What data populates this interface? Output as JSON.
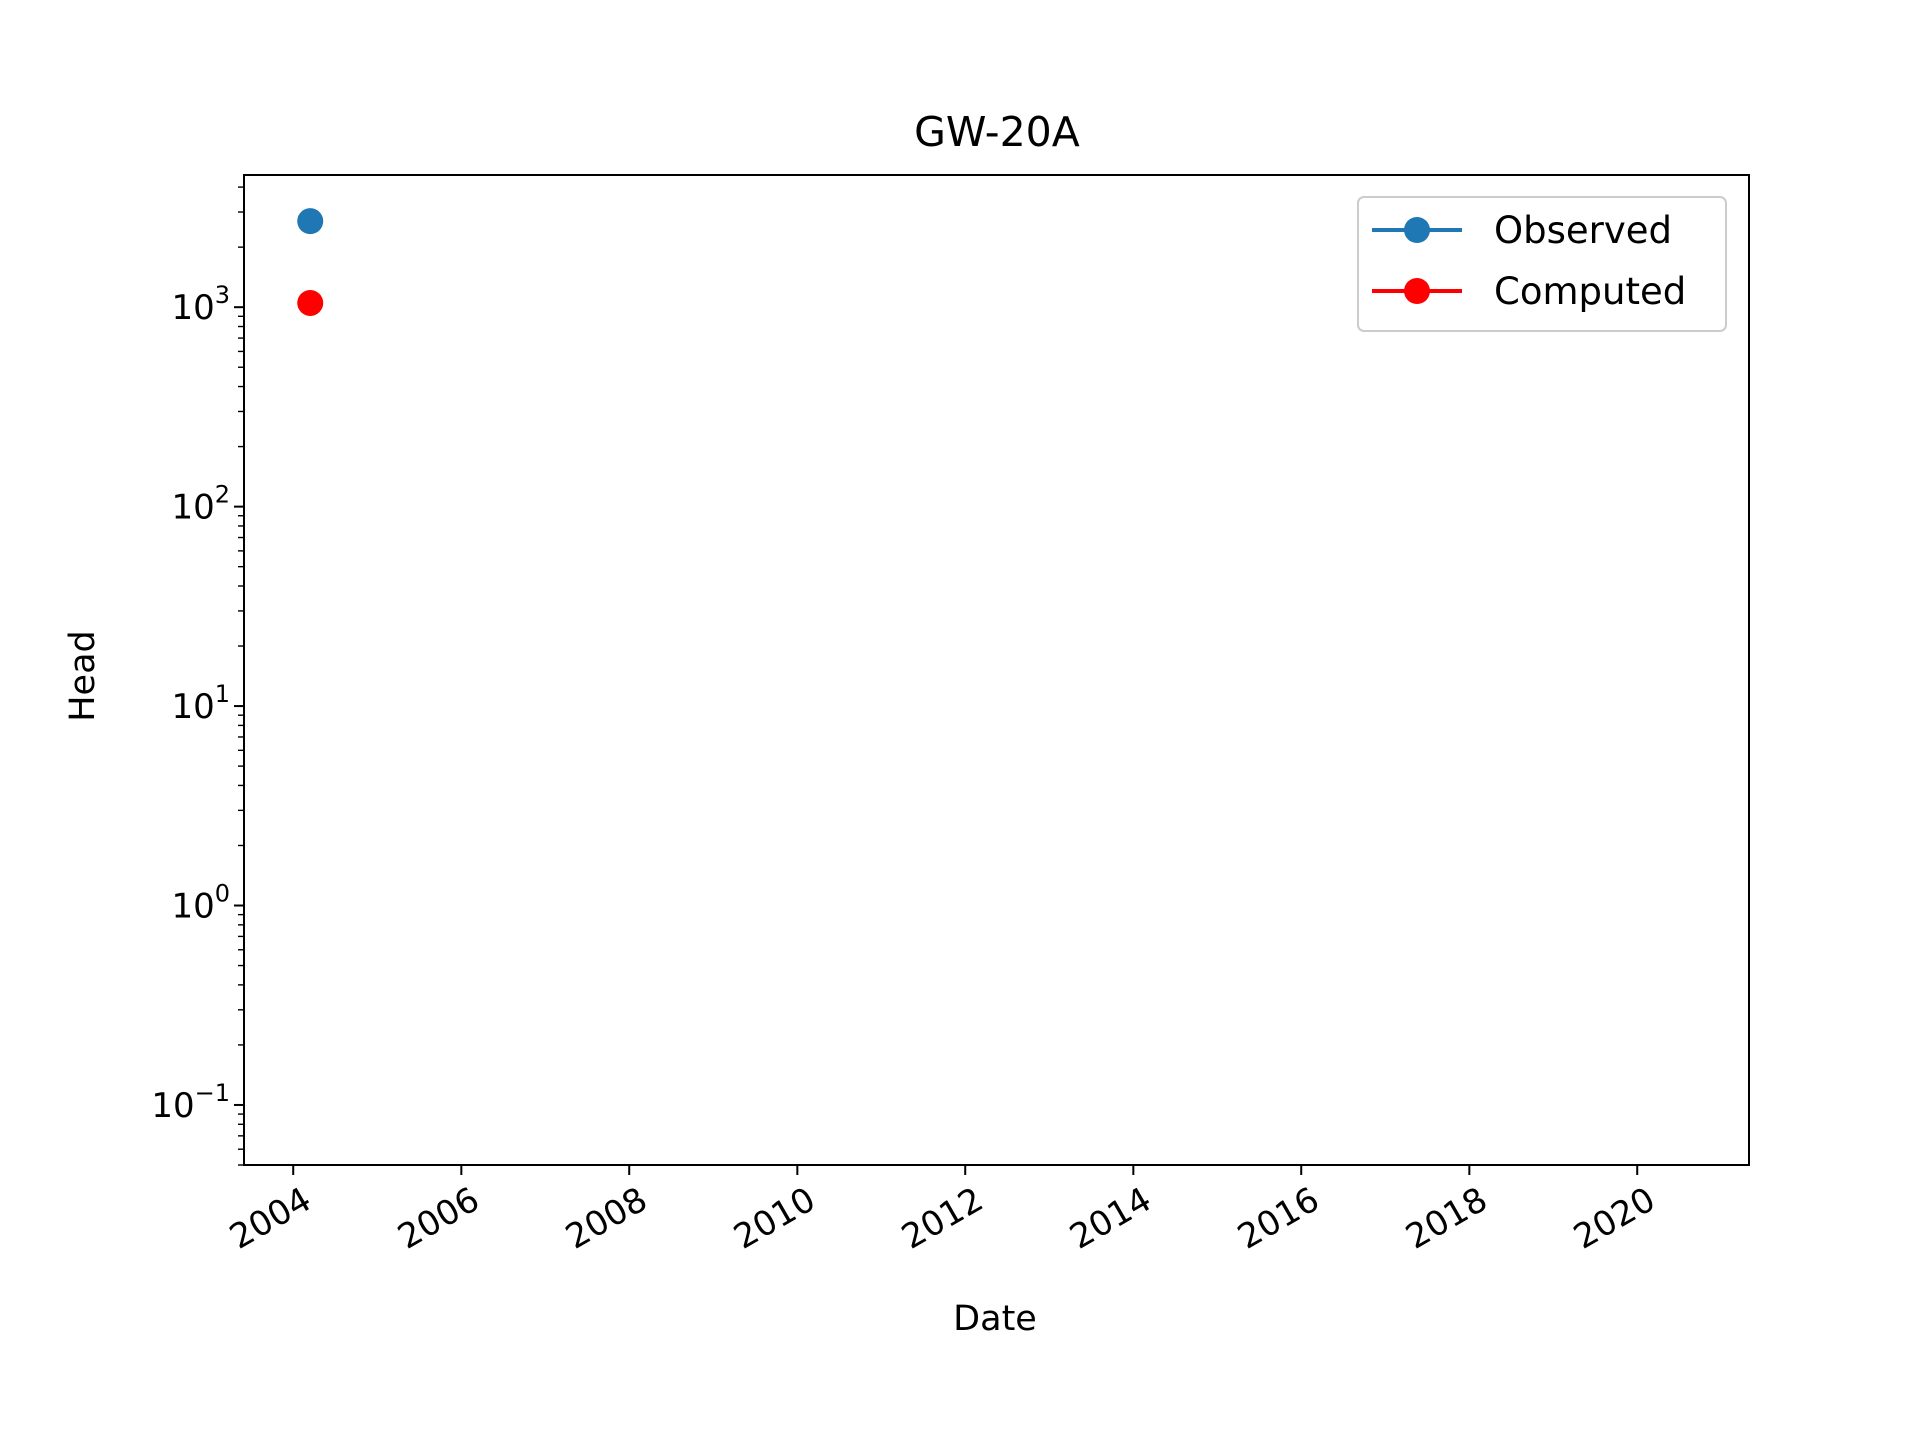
{
  "chart_data": {
    "type": "scatter",
    "title": "GW-20A",
    "xlabel": "Date",
    "ylabel": "Head",
    "xscale": "time",
    "yscale": "log",
    "xlim": [
      "2003-06-01",
      "2021-05-01"
    ],
    "ylim": [
      0.05,
      4600
    ],
    "xticks": [
      "2004",
      "2006",
      "2008",
      "2010",
      "2012",
      "2014",
      "2016",
      "2018",
      "2020"
    ],
    "xtick_rotation": -30,
    "yticks": [
      {
        "value": 0.1,
        "base": "10",
        "exp": "−1"
      },
      {
        "value": 1,
        "base": "10",
        "exp": "0"
      },
      {
        "value": 10,
        "base": "10",
        "exp": "1"
      },
      {
        "value": 100,
        "base": "10",
        "exp": "2"
      },
      {
        "value": 1000,
        "base": "10",
        "exp": "3"
      }
    ],
    "legend_position": "top-right",
    "grid": false,
    "series": [
      {
        "name": "Observed",
        "color": "#1f77b4",
        "points": [
          {
            "x": "2004-03-15",
            "y": 2700
          }
        ]
      },
      {
        "name": "Computed",
        "color": "#ff0000",
        "points": [
          {
            "x": "2004-03-15",
            "y": 1050
          }
        ]
      }
    ]
  }
}
